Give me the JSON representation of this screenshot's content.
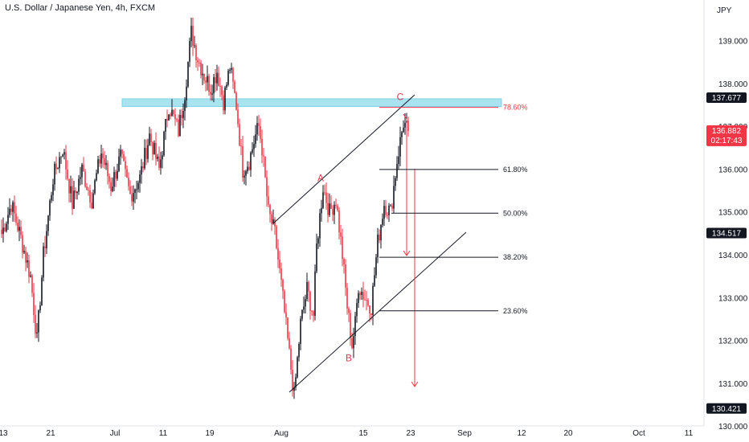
{
  "header": {
    "title": "U.S. Dollar / Japanese Yen, 4h, FXCM"
  },
  "chart_data": {
    "type": "candlestick",
    "title": "U.S. Dollar / Japanese Yen, 4h, FXCM",
    "currency": "JPY",
    "ylim": [
      129.8,
      139.9
    ],
    "x_tick_labels": [
      "13",
      "21",
      "Jul",
      "11",
      "19",
      "Aug",
      "15",
      "23",
      "Sep",
      "12",
      "20",
      "Oct",
      "11"
    ],
    "y_tick_labels": [
      "139.000",
      "138.000",
      "137.000",
      "136.000",
      "135.000",
      "134.000",
      "133.000",
      "132.000",
      "131.000",
      "130.000"
    ],
    "y_ticks": [
      139,
      138,
      137,
      136,
      135,
      134,
      133,
      132,
      131,
      130
    ],
    "price_tags": [
      {
        "label": "137.677",
        "value": 137.677,
        "color": "#131722"
      },
      {
        "label": "136.882",
        "sublabel": "02:17:43",
        "value": 136.882,
        "color": "#f23645"
      },
      {
        "label": "134.517",
        "value": 134.517,
        "color": "#131722"
      },
      {
        "label": "130.421",
        "value": 130.421,
        "color": "#131722"
      }
    ],
    "resistance_zone": {
      "low": 137.47,
      "high": 137.65,
      "color": "#a9e3f0"
    },
    "fib_levels": [
      {
        "label": "78.60%",
        "value": 137.45,
        "color": "#f23645"
      },
      {
        "label": "61.80%",
        "value": 136.0,
        "color": "#131722"
      },
      {
        "label": "50.00%",
        "value": 134.98,
        "color": "#131722"
      },
      {
        "label": "38.20%",
        "value": 133.95,
        "color": "#131722"
      },
      {
        "label": "23.60%",
        "value": 132.7,
        "color": "#131722"
      }
    ],
    "wave_labels": [
      {
        "label": "A",
        "value": 135.8
      },
      {
        "label": "B",
        "value": 131.6
      },
      {
        "label": "C",
        "value": 137.7
      }
    ],
    "close_anchors": [
      [
        0,
        134.5
      ],
      [
        6,
        135.2
      ],
      [
        12,
        134.4
      ],
      [
        18,
        133.5
      ],
      [
        22,
        132.0
      ],
      [
        26,
        134.0
      ],
      [
        32,
        135.8
      ],
      [
        38,
        136.5
      ],
      [
        44,
        135.2
      ],
      [
        50,
        136.0
      ],
      [
        56,
        135.3
      ],
      [
        62,
        136.4
      ],
      [
        68,
        135.6
      ],
      [
        74,
        136.3
      ],
      [
        80,
        135.4
      ],
      [
        86,
        135.8
      ],
      [
        92,
        136.8
      ],
      [
        98,
        136.0
      ],
      [
        104,
        137.5
      ],
      [
        110,
        136.9
      ],
      [
        114,
        137.8
      ],
      [
        118,
        139.2
      ],
      [
        122,
        138.6
      ],
      [
        126,
        138.2
      ],
      [
        130,
        137.9
      ],
      [
        134,
        138.3
      ],
      [
        138,
        137.6
      ],
      [
        142,
        138.4
      ],
      [
        146,
        137.5
      ],
      [
        150,
        136.0
      ],
      [
        154,
        136.2
      ],
      [
        158,
        136.8
      ],
      [
        160,
        137.0
      ],
      [
        162,
        136.5
      ],
      [
        166,
        135.0
      ],
      [
        170,
        134.5
      ],
      [
        174,
        133.3
      ],
      [
        178,
        132.0
      ],
      [
        182,
        130.7
      ],
      [
        186,
        132.4
      ],
      [
        190,
        133.2
      ],
      [
        194,
        132.6
      ],
      [
        196,
        134.2
      ],
      [
        200,
        135.6
      ],
      [
        204,
        135.0
      ],
      [
        208,
        135.3
      ],
      [
        212,
        134.0
      ],
      [
        215,
        132.8
      ],
      [
        218,
        131.9
      ],
      [
        220,
        132.4
      ],
      [
        222,
        133.3
      ],
      [
        226,
        133.0
      ],
      [
        230,
        132.8
      ],
      [
        234,
        134.3
      ],
      [
        238,
        135.2
      ],
      [
        242,
        135.0
      ],
      [
        246,
        136.2
      ],
      [
        250,
        137.1
      ],
      [
        253,
        136.9
      ]
    ]
  }
}
